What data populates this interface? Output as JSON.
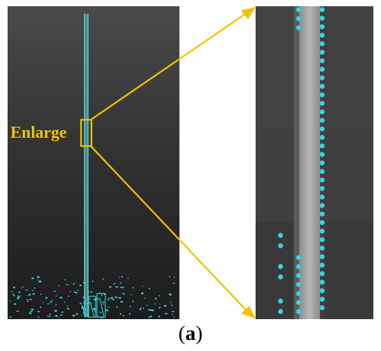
{
  "figure": {
    "enlarge_label": "Enlarge",
    "caption_open": "(",
    "caption_letter": "a",
    "caption_close": ")",
    "colors": {
      "background_dark": "#2b2b2b",
      "pole": "#9a9a9a",
      "point_marker": "#33d6df",
      "callout": "#f2c200"
    }
  }
}
